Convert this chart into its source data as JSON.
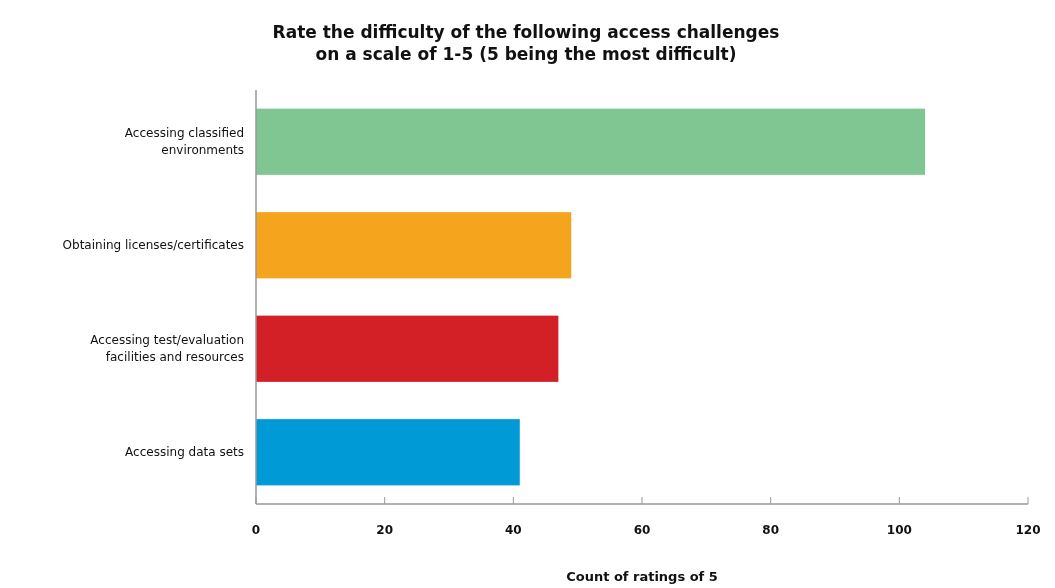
{
  "chart_data": {
    "type": "bar",
    "orientation": "horizontal",
    "title": "Rate the difficulty of the following access challenges\non a scale of 1-5 (5 being the most difficult)",
    "xlabel": "Count of ratings of 5",
    "categories": [
      "Accessing classified\nenvironments",
      "Obtaining licenses/certificates",
      "Accessing test/evaluation\nfacilities and resources",
      "Accessing data sets"
    ],
    "values": [
      104,
      49,
      47,
      41
    ],
    "colors": [
      "#7fc693",
      "#f5a51d",
      "#d32027",
      "#009ad6"
    ],
    "xlim": [
      0,
      120
    ],
    "xticks": [
      0,
      20,
      40,
      60,
      80,
      100,
      120
    ],
    "grid": false
  }
}
